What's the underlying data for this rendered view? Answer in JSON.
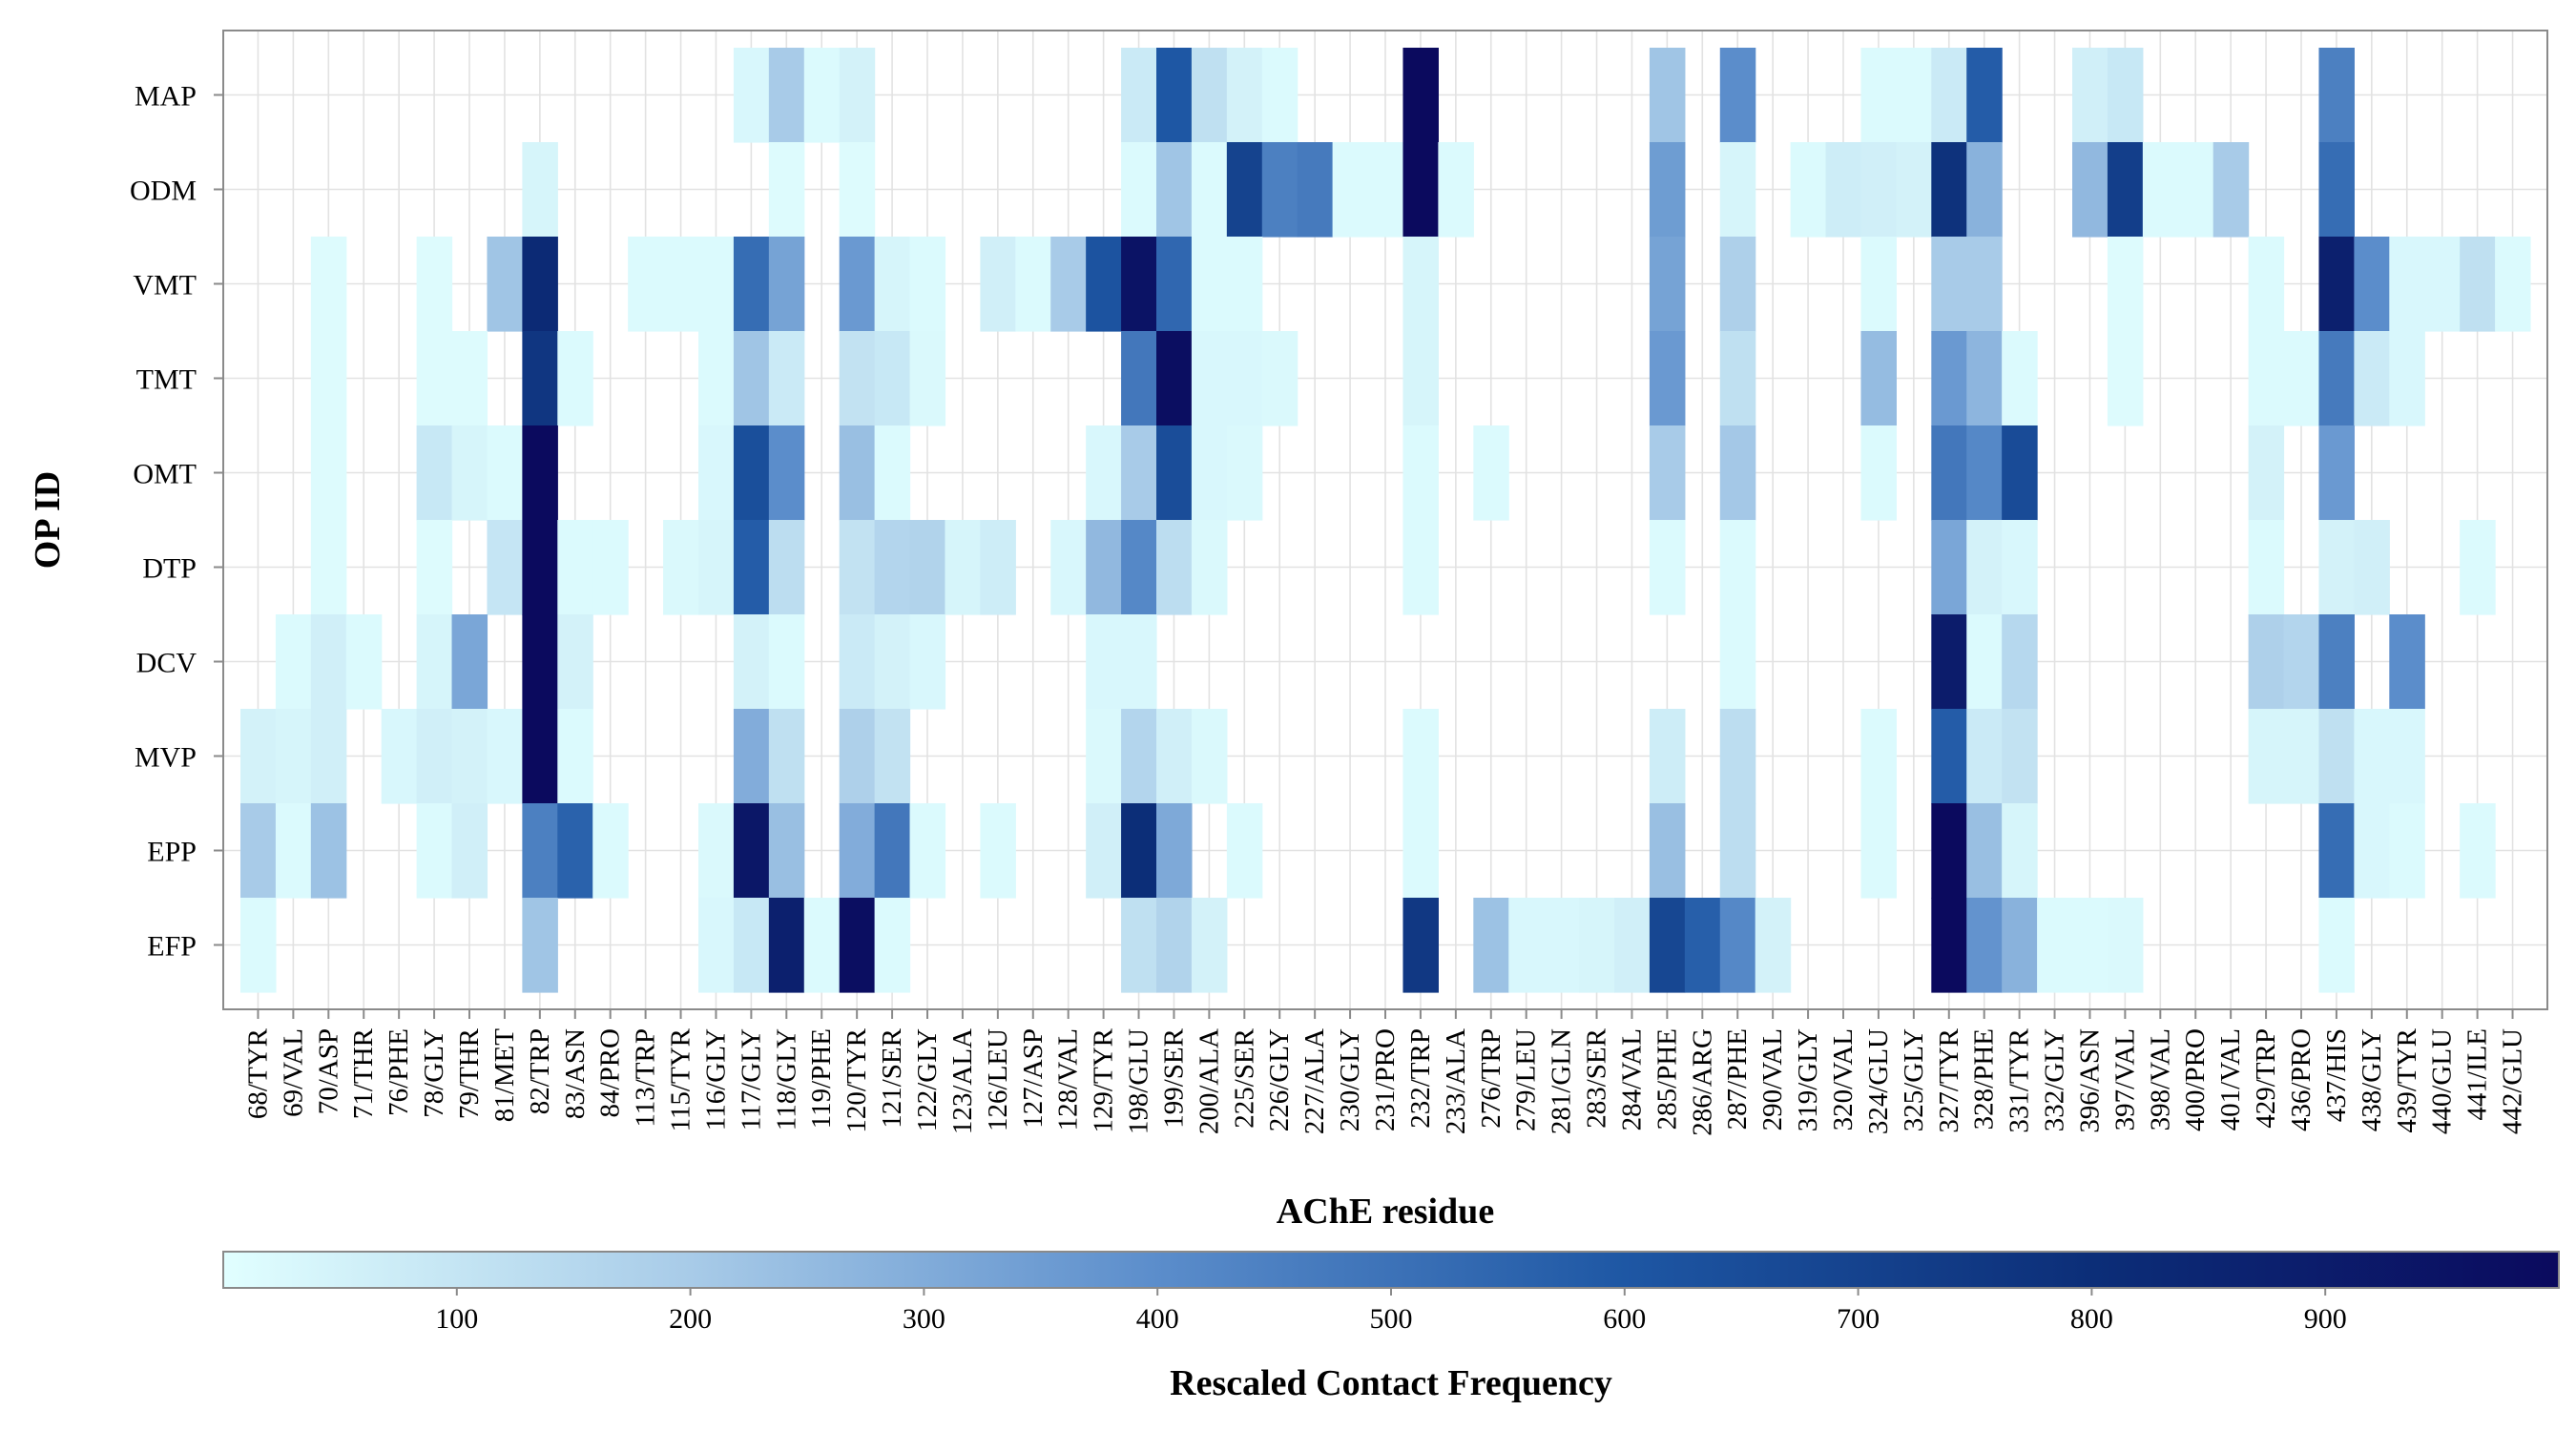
{
  "chart_data": {
    "type": "heatmap",
    "xlabel": "AChE residue",
    "ylabel": "OP ID",
    "colorbar_label": "Rescaled Contact Frequency",
    "colorbar_ticks": [
      "100",
      "200",
      "300",
      "400",
      "500",
      "600",
      "700",
      "800",
      "900"
    ],
    "colorbar_range": [
      0,
      1000
    ],
    "color_stops": [
      "#e1ffff",
      "#a8cbe8",
      "#5b8dcb",
      "#1e57a4",
      "#0c2e78",
      "#0b0a5e"
    ],
    "grid": true,
    "x": [
      "68/TYR",
      "69/VAL",
      "70/ASP",
      "71/THR",
      "76/PHE",
      "78/GLY",
      "79/THR",
      "81/MET",
      "82/TRP",
      "83/ASN",
      "84/PRO",
      "113/TRP",
      "115/TYR",
      "116/GLY",
      "117/GLY",
      "118/GLY",
      "119/PHE",
      "120/TYR",
      "121/SER",
      "122/GLY",
      "123/ALA",
      "126/LEU",
      "127/ASP",
      "128/VAL",
      "129/TYR",
      "198/GLU",
      "199/SER",
      "200/ALA",
      "225/SER",
      "226/GLY",
      "227/ALA",
      "230/GLY",
      "231/PRO",
      "232/TRP",
      "233/ALA",
      "276/TRP",
      "279/LEU",
      "281/GLN",
      "283/SER",
      "284/VAL",
      "285/PHE",
      "286/ARG",
      "287/PHE",
      "290/VAL",
      "319/GLY",
      "320/VAL",
      "324/GLU",
      "325/GLY",
      "327/TYR",
      "328/PHE",
      "331/TYR",
      "332/GLY",
      "396/ASN",
      "397/VAL",
      "398/VAL",
      "400/PRO",
      "401/VAL",
      "429/TRP",
      "436/PRO",
      "437/HIS",
      "438/GLY",
      "439/TYR",
      "440/GLU",
      "441/ILE",
      "442/GLU"
    ],
    "y": [
      "MAP",
      "ODM",
      "VMT",
      "TMT",
      "OMT",
      "DTP",
      "DCV",
      "MVP",
      "EPP",
      "EFP"
    ],
    "cells": {
      "MAP": {
        "117/GLY": 30,
        "118/GLY": 200,
        "119/PHE": 20,
        "120/TYR": 50,
        "198/GLU": 80,
        "199/SER": 600,
        "200/ALA": 120,
        "225/SER": 50,
        "226/GLY": 20,
        "232/TRP": 1000,
        "285/PHE": 220,
        "287/PHE": 400,
        "324/GLU": 20,
        "325/GLY": 20,
        "327/TYR": 80,
        "328/PHE": 580,
        "396/ASN": 60,
        "397/VAL": 90,
        "437/HIS": 450
      },
      "ODM": {
        "82/TRP": 40,
        "118/GLY": 15,
        "120/TYR": 15,
        "198/GLU": 20,
        "199/SER": 220,
        "200/ALA": 20,
        "225/SER": 700,
        "226/GLY": 450,
        "227/ALA": 470,
        "230/GLY": 20,
        "231/PRO": 20,
        "232/TRP": 1000,
        "233/ALA": 20,
        "285/PHE": 350,
        "287/PHE": 40,
        "319/GLY": 20,
        "320/VAL": 70,
        "324/GLU": 60,
        "325/GLY": 50,
        "327/TYR": 780,
        "328/PHE": 280,
        "396/ASN": 260,
        "397/VAL": 720,
        "398/VAL": 20,
        "400/PRO": 20,
        "401/VAL": 200,
        "437/HIS": 520
      },
      "VMT": {
        "70/ASP": 15,
        "78/GLY": 15,
        "81/MET": 220,
        "82/TRP": 820,
        "113/TRP": 20,
        "115/TYR": 20,
        "116/GLY": 20,
        "117/GLY": 520,
        "118/GLY": 330,
        "120/TYR": 360,
        "121/SER": 40,
        "122/GLY": 20,
        "126/LEU": 60,
        "127/ASP": 20,
        "128/VAL": 200,
        "129/TYR": 620,
        "198/GLU": 950,
        "199/SER": 540,
        "200/ALA": 20,
        "225/SER": 20,
        "232/TRP": 40,
        "285/PHE": 330,
        "287/PHE": 180,
        "324/GLU": 20,
        "327/TYR": 200,
        "328/PHE": 200,
        "397/VAL": 15,
        "429/TRP": 20,
        "437/HIS": 880,
        "438/GLY": 400,
        "439/TYR": 30,
        "440/GLU": 30,
        "441/ILE": 120,
        "442/GLU": 20
      },
      "TMT": {
        "70/ASP": 15,
        "78/GLY": 15,
        "79/THR": 15,
        "82/TRP": 760,
        "83/ASN": 20,
        "116/GLY": 20,
        "117/GLY": 220,
        "118/GLY": 80,
        "120/TYR": 110,
        "121/SER": 90,
        "122/GLY": 25,
        "198/GLU": 480,
        "199/SER": 980,
        "200/ALA": 30,
        "225/SER": 30,
        "226/GLY": 25,
        "232/TRP": 40,
        "285/PHE": 360,
        "287/PHE": 120,
        "324/GLU": 250,
        "327/TYR": 360,
        "328/PHE": 270,
        "331/TYR": 20,
        "397/VAL": 15,
        "429/TRP": 20,
        "436/PRO": 20,
        "437/HIS": 470,
        "438/GLY": 80,
        "439/TYR": 30
      },
      "OMT": {
        "70/ASP": 15,
        "78/GLY": 90,
        "79/THR": 40,
        "81/MET": 20,
        "82/TRP": 1000,
        "116/GLY": 30,
        "117/GLY": 640,
        "118/GLY": 400,
        "120/TYR": 240,
        "121/SER": 20,
        "129/TYR": 30,
        "198/GLU": 200,
        "199/SER": 650,
        "200/ALA": 30,
        "225/SER": 25,
        "232/TRP": 20,
        "276/TRP": 20,
        "285/PHE": 200,
        "287/PHE": 210,
        "324/GLU": 20,
        "327/TYR": 480,
        "328/PHE": 420,
        "331/TYR": 660,
        "429/TRP": 50,
        "437/HIS": 360
      },
      "DTP": {
        "70/ASP": 15,
        "78/GLY": 15,
        "81/MET": 100,
        "82/TRP": 1000,
        "83/ASN": 20,
        "84/PRO": 20,
        "115/TYR": 25,
        "116/GLY": 40,
        "117/GLY": 580,
        "118/GLY": 130,
        "120/TYR": 110,
        "121/SER": 160,
        "122/GLY": 170,
        "123/ALA": 40,
        "126/LEU": 70,
        "128/VAL": 30,
        "129/TYR": 260,
        "198/GLU": 420,
        "199/SER": 130,
        "200/ALA": 25,
        "232/TRP": 20,
        "285/PHE": 20,
        "287/PHE": 20,
        "327/TYR": 320,
        "328/PHE": 50,
        "331/TYR": 30,
        "429/TRP": 20,
        "437/HIS": 50,
        "438/GLY": 60,
        "441/ILE": 20
      },
      "DCV": {
        "69/VAL": 20,
        "70/ASP": 60,
        "71/THR": 20,
        "78/GLY": 40,
        "79/THR": 320,
        "82/TRP": 1000,
        "83/ASN": 50,
        "117/GLY": 50,
        "118/GLY": 20,
        "120/TYR": 80,
        "121/SER": 50,
        "122/GLY": 30,
        "129/TYR": 30,
        "198/GLU": 30,
        "287/PHE": 20,
        "327/TYR": 900,
        "328/PHE": 20,
        "331/TYR": 150,
        "429/TRP": 180,
        "436/PRO": 160,
        "437/HIS": 450,
        "439/TYR": 400
      },
      "MVP": {
        "68/TYR": 50,
        "69/VAL": 40,
        "70/ASP": 60,
        "76/PHE": 30,
        "78/GLY": 60,
        "79/THR": 50,
        "81/MET": 30,
        "82/TRP": 1000,
        "83/ASN": 20,
        "117/GLY": 300,
        "118/GLY": 120,
        "120/TYR": 180,
        "121/SER": 110,
        "129/TYR": 25,
        "198/GLU": 160,
        "199/SER": 60,
        "200/ALA": 25,
        "232/TRP": 20,
        "285/PHE": 70,
        "287/PHE": 130,
        "324/GLU": 20,
        "327/TYR": 580,
        "328/PHE": 80,
        "331/TYR": 110,
        "429/TRP": 40,
        "436/PRO": 40,
        "437/HIS": 120,
        "438/GLY": 30,
        "439/TYR": 30
      },
      "EPP": {
        "68/TYR": 200,
        "69/VAL": 20,
        "70/ASP": 230,
        "78/GLY": 20,
        "79/THR": 60,
        "82/TRP": 450,
        "83/ASN": 560,
        "84/PRO": 20,
        "116/GLY": 25,
        "117/GLY": 930,
        "118/GLY": 240,
        "120/TYR": 300,
        "121/SER": 480,
        "122/GLY": 20,
        "126/LEU": 20,
        "129/TYR": 60,
        "198/GLU": 800,
        "199/SER": 310,
        "225/SER": 20,
        "232/TRP": 20,
        "285/PHE": 240,
        "287/PHE": 130,
        "324/GLU": 20,
        "327/TYR": 1000,
        "328/PHE": 240,
        "331/TYR": 40,
        "437/HIS": 520,
        "438/GLY": 30,
        "439/TYR": 20,
        "441/ILE": 20
      },
      "EFP": {
        "68/TYR": 20,
        "82/TRP": 220,
        "116/GLY": 30,
        "117/GLY": 90,
        "118/GLY": 880,
        "119/PHE": 20,
        "120/TYR": 980,
        "121/SER": 20,
        "198/GLU": 120,
        "199/SER": 170,
        "200/ALA": 50,
        "232/TRP": 750,
        "276/TRP": 230,
        "279/LEU": 30,
        "281/GLN": 30,
        "283/SER": 40,
        "284/VAL": 60,
        "285/PHE": 680,
        "286/ARG": 570,
        "287/PHE": 420,
        "290/VAL": 50,
        "327/TYR": 1000,
        "328/PHE": 380,
        "331/TYR": 280,
        "332/GLY": 20,
        "396/ASN": 20,
        "397/VAL": 25,
        "437/HIS": 20
      }
    }
  }
}
